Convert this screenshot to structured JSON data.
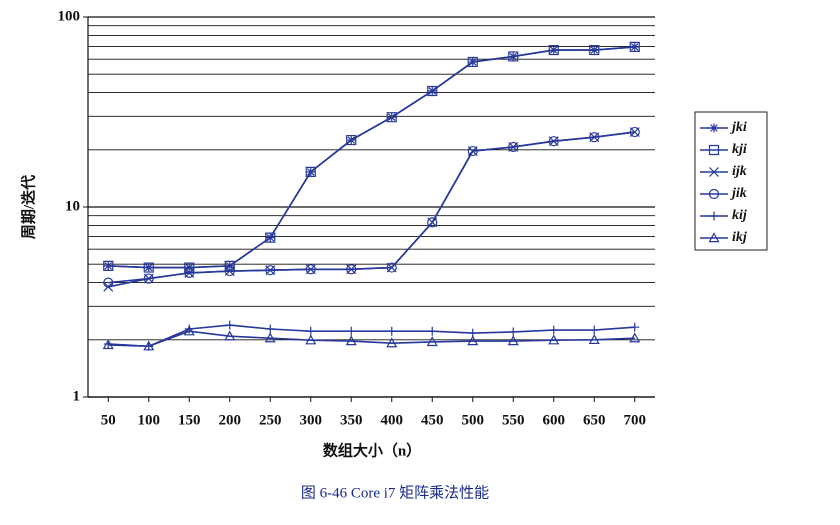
{
  "chart_data": {
    "type": "line",
    "caption": "图 6-46 Core i7 矩阵乘法性能",
    "x_label": "数组大小（n）",
    "y_label": "周期/迭代",
    "log_scale_y": true,
    "grid": true,
    "legend_position": "right",
    "x": [
      50,
      100,
      150,
      200,
      250,
      300,
      350,
      400,
      450,
      500,
      550,
      600,
      650,
      700
    ],
    "xlim": [
      25,
      725
    ],
    "xticks": [
      50,
      100,
      150,
      200,
      250,
      300,
      350,
      400,
      450,
      500,
      550,
      600,
      650,
      700
    ],
    "ylim": [
      1,
      100
    ],
    "yticks": [
      1,
      10,
      100
    ],
    "y_minor_ticks": [
      2,
      3,
      4,
      5,
      6,
      7,
      8,
      9,
      20,
      30,
      40,
      50,
      60,
      70,
      80,
      90
    ],
    "series": [
      {
        "name": "jki",
        "color": "#27389a",
        "marker": "asterisk",
        "values": [
          4.9,
          4.8,
          4.8,
          4.9,
          6.9,
          15.3,
          22.5,
          29.7,
          40.8,
          58,
          62,
          67,
          67,
          69.6
        ]
      },
      {
        "name": "kji",
        "color": "#27389a",
        "marker": "square",
        "values": [
          4.9,
          4.8,
          4.8,
          4.9,
          6.9,
          15.3,
          22.5,
          29.7,
          40.8,
          58,
          62,
          67,
          67,
          69.6
        ]
      },
      {
        "name": "ijk",
        "color": "#27389a",
        "marker": "cross",
        "values": [
          3.8,
          4.2,
          4.5,
          4.6,
          4.65,
          4.7,
          4.7,
          4.8,
          8.3,
          19.7,
          20.7,
          22.2,
          23.3,
          24.8
        ]
      },
      {
        "name": "jik",
        "color": "#27389a",
        "marker": "circle",
        "values": [
          4.0,
          4.2,
          4.5,
          4.6,
          4.65,
          4.7,
          4.7,
          4.8,
          8.3,
          19.7,
          20.7,
          22.2,
          23.3,
          24.8
        ]
      },
      {
        "name": "kij",
        "color": "#27389a",
        "marker": "plus",
        "values": [
          1.9,
          1.85,
          2.28,
          2.39,
          2.28,
          2.22,
          2.22,
          2.22,
          2.22,
          2.17,
          2.2,
          2.25,
          2.25,
          2.33
        ]
      },
      {
        "name": "ikj",
        "color": "#27389a",
        "marker": "triangle",
        "values": [
          1.88,
          1.85,
          2.22,
          2.09,
          2.04,
          1.99,
          1.97,
          1.92,
          1.95,
          1.97,
          1.97,
          1.99,
          2.0,
          2.04
        ]
      }
    ]
  }
}
